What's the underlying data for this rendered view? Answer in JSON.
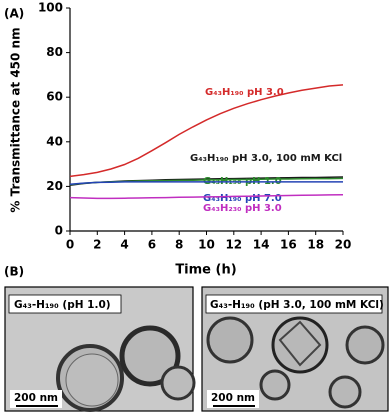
{
  "chart_data": {
    "type": "line",
    "panel_label": "(A)",
    "x_label": "Time (h)",
    "y_label": "% Transmittance at 450 nm",
    "x": [
      0,
      1,
      2,
      3,
      4,
      5,
      6,
      7,
      8,
      9,
      10,
      11,
      12,
      13,
      14,
      15,
      16,
      17,
      18,
      19,
      20
    ],
    "xlim": [
      0,
      20
    ],
    "xticks": [
      0,
      2,
      4,
      6,
      8,
      10,
      12,
      14,
      16,
      18,
      20
    ],
    "ylim": [
      0,
      100
    ],
    "yticks": [
      0,
      20,
      40,
      60,
      80,
      100
    ],
    "series": [
      {
        "name": "G₄₃H₁₉₀ pH 3.0",
        "color": "#d42a2a",
        "values": [
          24.5,
          25.3,
          26.3,
          27.8,
          29.8,
          32.6,
          36,
          39.6,
          43.3,
          46.7,
          49.8,
          52.6,
          55,
          57.1,
          58.9,
          60.5,
          61.9,
          63.1,
          64.1,
          65,
          65.5
        ]
      },
      {
        "name": "G₄₃H₁₉₀ pH 3.0, 100 mM KCl",
        "color": "#1a1a1a",
        "values": [
          20.5,
          21.3,
          21.8,
          22.1,
          22.4,
          22.6,
          22.8,
          23,
          23.1,
          23.2,
          23.3,
          23.4,
          23.5,
          23.6,
          23.7,
          23.8,
          23.9,
          24,
          24,
          24.1,
          24.2
        ]
      },
      {
        "name": "G₄₃H₁₉₀ pH 1.0",
        "color": "#2e8b2e",
        "values": [
          20.8,
          21.4,
          21.8,
          22,
          22.2,
          22.4,
          22.5,
          22.6,
          22.7,
          22.8,
          22.9,
          23,
          23.1,
          23.1,
          23.2,
          23.3,
          23.3,
          23.4,
          23.5,
          23.5,
          23.6
        ]
      },
      {
        "name": "G₄₃H₁₉₀ pH 7.0",
        "color": "#2443b5",
        "values": [
          21,
          21.5,
          21.8,
          21.9,
          22,
          22,
          22,
          22,
          22,
          22,
          22,
          22,
          22,
          22,
          22,
          22,
          22,
          22,
          22,
          22,
          22
        ]
      },
      {
        "name": "G₄₃H₂₃₀ pH 3.0",
        "color": "#c02ec0",
        "values": [
          15,
          14.8,
          14.6,
          14.6,
          14.7,
          14.8,
          14.9,
          15,
          15.1,
          15.2,
          15.3,
          15.4,
          15.5,
          15.6,
          15.7,
          15.8,
          15.9,
          16,
          16.1,
          16.2,
          16.3
        ]
      }
    ]
  },
  "panel_b": {
    "label": "(B)",
    "images": [
      {
        "caption": "G₄₃-H₁₉₀ (pH 1.0)",
        "scale_bar": "200 nm"
      },
      {
        "caption": "G₄₃-H₁₉₀ (pH 3.0, 100 mM KCl)",
        "scale_bar": "200 nm"
      }
    ]
  }
}
